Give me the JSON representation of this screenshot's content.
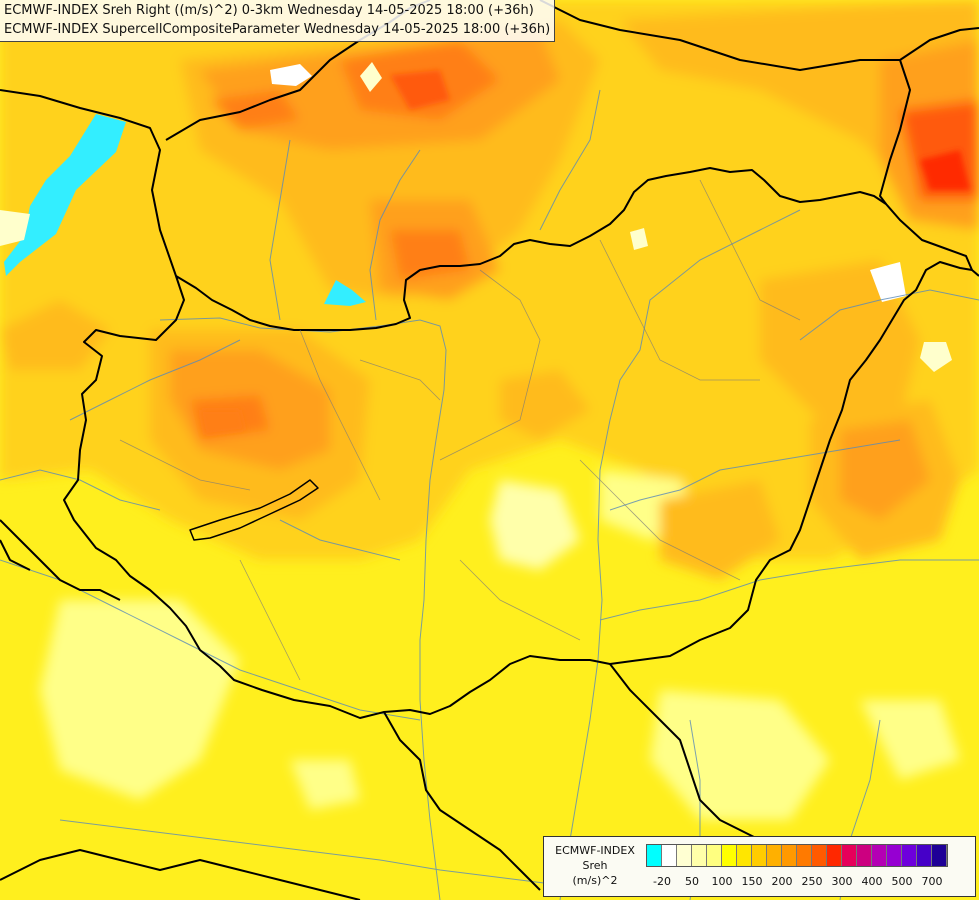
{
  "title": {
    "line1": "ECMWF-INDEX Sreh Right ((m/s)^2) 0-3km Wednesday 14-05-2025 18:00 (+36h)",
    "line2": "ECMWF-INDEX SupercellCompositeParameter Wednesday 14-05-2025 18:00 (+36h)"
  },
  "legend": {
    "title": [
      "ECMWF-INDEX",
      "Sreh",
      "(m/s)^2"
    ],
    "colors": [
      "#00ffff",
      "#ffffff",
      "#ffffd2",
      "#ffffaa",
      "#ffff80",
      "#ffff00",
      "#ffe600",
      "#ffcc00",
      "#ffb000",
      "#ff9900",
      "#ff7a00",
      "#ff5a00",
      "#ff2800",
      "#e6005a",
      "#cc0080",
      "#b400b4",
      "#9600d2",
      "#6e00dc",
      "#4600c8",
      "#1e0096"
    ],
    "tick_labels": [
      "-20",
      "50",
      "100",
      "150",
      "200",
      "250",
      "300",
      "400",
      "500",
      "700"
    ]
  },
  "palette": {
    "pale": "#ffffcc",
    "light": "#ffff88",
    "yellow": "#ffef1e",
    "gold": "#ffd21e",
    "orange_light": "#ffbb1e",
    "orange": "#ffa01e",
    "orange_dark": "#ff7f14",
    "red_orange": "#ff5a0a",
    "red": "#ff2a00",
    "cyan": "#33eeff",
    "white": "#ffffff"
  }
}
